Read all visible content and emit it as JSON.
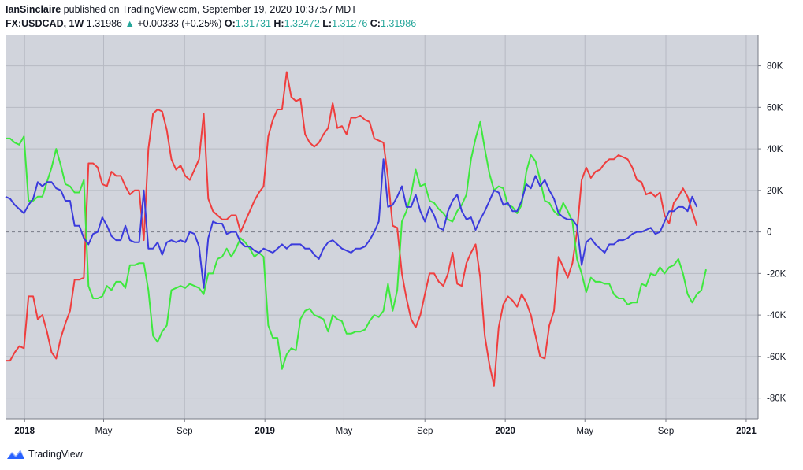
{
  "header": {
    "author": "IanSinclaire",
    "published_text": "published on TradingView.com, September 19, 2020 10:37:57 MDT",
    "symbol": "FX:USDCAD, 1W",
    "last": "1.31986",
    "change": "+0.00333 (+0.25%)",
    "o_label": "O:",
    "o_value": "1.31731",
    "h_label": "H:",
    "h_value": "1.32472",
    "l_label": "L:",
    "l_value": "1.31276",
    "c_label": "C:",
    "c_value": "1.31986"
  },
  "footer": {
    "brand": "TradingView"
  },
  "colors": {
    "plot_bg": "#d1d4dc",
    "grid": "#b7bac3",
    "zero_line": "#787b86",
    "red": "#ef3e3e",
    "green": "#3ee83e",
    "blue": "#3b3bdc",
    "accent": "#26a69a",
    "logo": "#2962ff"
  },
  "chart_data": {
    "type": "line",
    "x_start": "2017-12-03",
    "x_step_days": 7,
    "x_axis_ticks": [
      "2018",
      "May",
      "Sep",
      "2019",
      "May",
      "Sep",
      "2020",
      "May",
      "Sep",
      "2021"
    ],
    "y_axis_ticks": [
      "80K",
      "60K",
      "40K",
      "20K",
      "0",
      "-20K",
      "-40K",
      "-60K",
      "-80K"
    ],
    "ylim": [
      -90000,
      95000
    ],
    "zero_line": "dashed",
    "grid": true,
    "series": [
      {
        "color": "red",
        "values": [
          -62000,
          -62000,
          -58000,
          -55000,
          -56000,
          -31000,
          -31000,
          -42000,
          -40000,
          -48000,
          -58000,
          -61000,
          -51000,
          -44000,
          -38000,
          -23000,
          -23000,
          -22000,
          33000,
          33000,
          31000,
          23000,
          22000,
          29000,
          27000,
          27000,
          22000,
          18000,
          20000,
          20000,
          -4000,
          40000,
          57000,
          59000,
          58000,
          49000,
          35000,
          30000,
          32000,
          27000,
          25000,
          30000,
          35000,
          57000,
          16000,
          10000,
          8000,
          6000,
          6000,
          8000,
          8000,
          0,
          5000,
          10000,
          15000,
          19000,
          22000,
          46000,
          54000,
          59000,
          59000,
          77000,
          65000,
          63000,
          64000,
          47000,
          43000,
          41000,
          43000,
          47000,
          50000,
          62000,
          50000,
          51000,
          47000,
          55000,
          55000,
          56000,
          54000,
          53000,
          45000,
          44000,
          43000,
          26000,
          3000,
          2000,
          -20000,
          -32000,
          -42000,
          -46000,
          -40000,
          -30000,
          -20000,
          -20000,
          -24000,
          -26000,
          -20000,
          -10000,
          -25000,
          -26000,
          -15000,
          -10000,
          -6000,
          -22000,
          -50000,
          -64000,
          -74000,
          -46000,
          -35000,
          -31000,
          -33000,
          -36000,
          -30000,
          -34000,
          -40000,
          -50000,
          -60000,
          -61000,
          -45000,
          -38000,
          -12000,
          -17000,
          -22000,
          -15000,
          0,
          25000,
          31000,
          26000,
          29000,
          30000,
          33000,
          35000,
          35000,
          37000,
          36000,
          35000,
          31000,
          25000,
          24000,
          18000,
          19000,
          17000,
          19000,
          8000,
          4000,
          14000,
          17000,
          21000,
          17000,
          10000,
          3000
        ]
      },
      {
        "color": "green",
        "values": [
          45000,
          45000,
          43000,
          42000,
          46000,
          15000,
          15000,
          17000,
          17000,
          24000,
          31000,
          40000,
          32000,
          23000,
          22000,
          19000,
          19000,
          25000,
          -26000,
          -32000,
          -32000,
          -31000,
          -26000,
          -28000,
          -24000,
          -24000,
          -27000,
          -16000,
          -16000,
          -15000,
          -15000,
          -28000,
          -50000,
          -53000,
          -48000,
          -45000,
          -28000,
          -27000,
          -26000,
          -27000,
          -25000,
          -26000,
          -27000,
          -30000,
          -20000,
          -20000,
          -13000,
          -12000,
          -8000,
          -12000,
          -8000,
          -3000,
          -5000,
          -8000,
          -12000,
          -10000,
          -12000,
          -45000,
          -51000,
          -51000,
          -66000,
          -59000,
          -56000,
          -57000,
          -42000,
          -38000,
          -37000,
          -40000,
          -41000,
          -42000,
          -48000,
          -40000,
          -42000,
          -43000,
          -49000,
          -49000,
          -48000,
          -48000,
          -47000,
          -43000,
          -40000,
          -41000,
          -38000,
          -25000,
          -38000,
          -28000,
          5000,
          10000,
          18000,
          30000,
          22000,
          23000,
          15000,
          14000,
          11000,
          9000,
          6000,
          5000,
          10000,
          13000,
          18000,
          35000,
          45000,
          53000,
          40000,
          28000,
          20000,
          22000,
          21000,
          13000,
          12000,
          9000,
          13000,
          29000,
          37000,
          34000,
          25000,
          15000,
          14000,
          10000,
          8000,
          14000,
          10000,
          5000,
          -13000,
          -20000,
          -29000,
          -22000,
          -24000,
          -24000,
          -25000,
          -25000,
          -30000,
          -32000,
          -32000,
          -35000,
          -34000,
          -34000,
          -25000,
          -26000,
          -20000,
          -21000,
          -17000,
          -20000,
          -17000,
          -16000,
          -13000,
          -20000,
          -30000,
          -34000,
          -30000,
          -28000,
          -18000
        ]
      },
      {
        "color": "blue",
        "values": [
          17000,
          16000,
          13000,
          11000,
          9000,
          13000,
          16000,
          24000,
          22000,
          24000,
          24000,
          21000,
          20000,
          15000,
          15000,
          3000,
          3000,
          -3000,
          -6000,
          -1000,
          0,
          7000,
          3000,
          -2000,
          -4000,
          -4000,
          3000,
          -4000,
          -5000,
          -5000,
          20000,
          -8000,
          -8000,
          -5000,
          -11000,
          -5000,
          -4000,
          -5000,
          -4000,
          -5000,
          0,
          -1000,
          -7000,
          -27000,
          -3000,
          5000,
          4000,
          4000,
          -1000,
          0,
          0,
          -5000,
          -7000,
          -7000,
          -9000,
          -10000,
          -8000,
          -9000,
          -10000,
          -8000,
          -6000,
          -8000,
          -6000,
          -6000,
          -6000,
          -8000,
          -8000,
          -11000,
          -13000,
          -8000,
          -5000,
          -4000,
          -6000,
          -8000,
          -9000,
          -10000,
          -8000,
          -8000,
          -7000,
          -4000,
          0,
          5000,
          35000,
          12000,
          13000,
          17000,
          22000,
          12000,
          12000,
          18000,
          10000,
          5000,
          12000,
          8000,
          2000,
          1000,
          10000,
          15000,
          18000,
          10000,
          6000,
          7000,
          1000,
          6000,
          10000,
          15000,
          20000,
          19000,
          13000,
          14000,
          10000,
          10000,
          15000,
          23000,
          21000,
          27000,
          22000,
          25000,
          20000,
          16000,
          9000,
          7000,
          6000,
          6000,
          3000,
          -16000,
          -5000,
          -3000,
          -6000,
          -8000,
          -10000,
          -6000,
          -6000,
          -4000,
          -4000,
          -3000,
          -1000,
          0,
          0,
          1000,
          2000,
          -1000,
          0,
          5000,
          10000,
          10000,
          12000,
          12000,
          10000,
          17000,
          12000
        ]
      }
    ]
  }
}
